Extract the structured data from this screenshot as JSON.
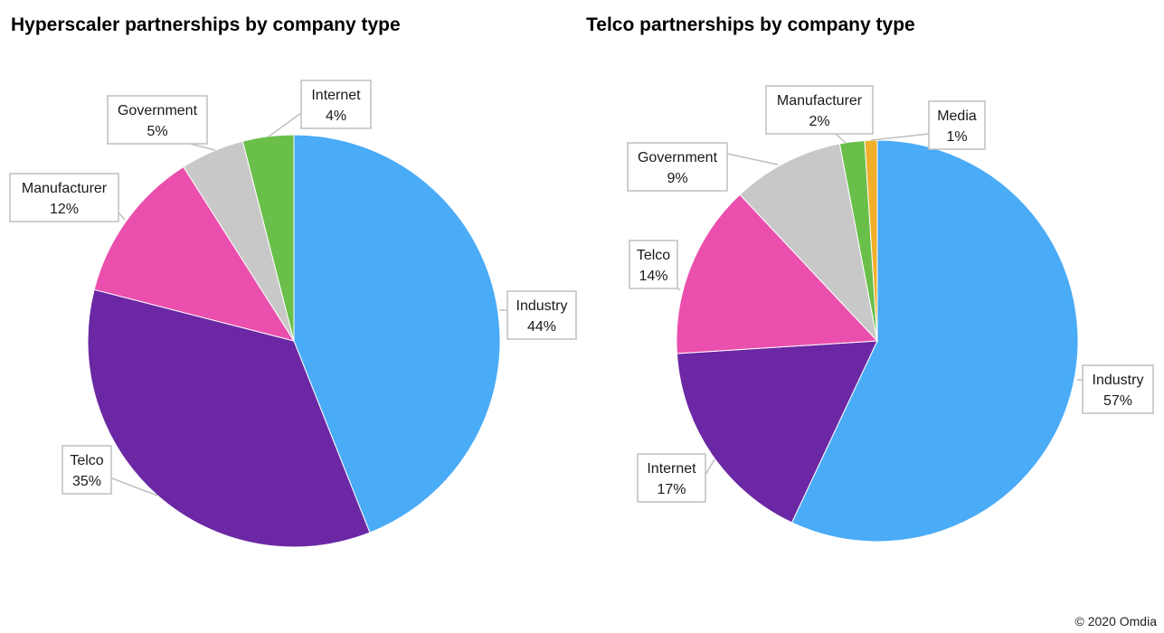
{
  "chart_data": [
    {
      "type": "pie",
      "title": "Hyperscaler partnerships by company type",
      "slices": [
        {
          "label": "Industry",
          "value": 44,
          "display": "44%",
          "color": "#4aabf7"
        },
        {
          "label": "Telco",
          "value": 35,
          "display": "35%",
          "color": "#6c28a4"
        },
        {
          "label": "Manufacturer",
          "value": 12,
          "display": "12%",
          "color": "#ea4fad"
        },
        {
          "label": "Government",
          "value": 5,
          "display": "5%",
          "color": "#c8c8c8"
        },
        {
          "label": "Internet",
          "value": 4,
          "display": "4%",
          "color": "#69bf4a"
        }
      ]
    },
    {
      "type": "pie",
      "title": "Telco partnerships by company type",
      "slices": [
        {
          "label": "Industry",
          "value": 57,
          "display": "57%",
          "color": "#4aabf7"
        },
        {
          "label": "Internet",
          "value": 17,
          "display": "17%",
          "color": "#6c28a4"
        },
        {
          "label": "Telco",
          "value": 14,
          "display": "14%",
          "color": "#ea4fad"
        },
        {
          "label": "Government",
          "value": 9,
          "display": "9%",
          "color": "#c8c8c8"
        },
        {
          "label": "Manufacturer",
          "value": 2,
          "display": "2%",
          "color": "#69bf4a"
        },
        {
          "label": "Media",
          "value": 1,
          "display": "1%",
          "color": "#f1af2a"
        }
      ]
    }
  ],
  "footer": {
    "copyright": "© 2020 Omdia"
  }
}
